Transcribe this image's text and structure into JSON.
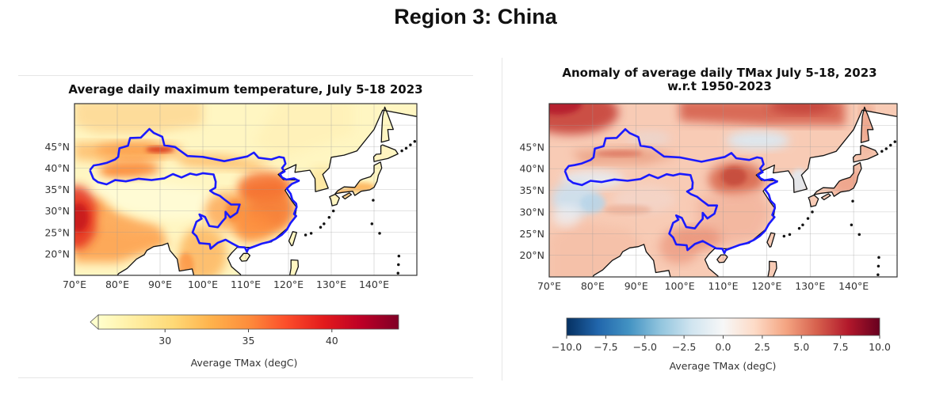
{
  "page": {
    "title": "Region 3: China"
  },
  "chart_data": [
    {
      "type": "heatmap",
      "title": "Average daily maximum temperature, July 5-18 2023",
      "xlabel": "",
      "ylabel": "",
      "x_ticks": [
        "70°E",
        "80°E",
        "90°E",
        "100°E",
        "110°E",
        "120°E",
        "130°E",
        "140°E"
      ],
      "x_tick_values": [
        70,
        80,
        90,
        100,
        110,
        120,
        130,
        140
      ],
      "y_ticks": [
        "45°N",
        "40°N",
        "35°N",
        "30°N",
        "25°N",
        "20°N"
      ],
      "y_tick_values": [
        45,
        40,
        35,
        30,
        25,
        20
      ],
      "xlim": [
        70,
        150
      ],
      "ylim": [
        15,
        55
      ],
      "grid": true,
      "region_outline": "China (blue)",
      "colormap": "YlOrRd",
      "colorbar": {
        "label": "Average TMax (degC)",
        "range": [
          26,
          44
        ],
        "ticks": [
          "30",
          "35",
          "40"
        ],
        "tick_values": [
          30,
          35,
          40
        ],
        "extend": "min",
        "orientation": "horizontal",
        "placement": "bottom"
      }
    },
    {
      "type": "heatmap",
      "title": "Anomaly of average daily TMax July 5-18, 2023",
      "subtitle": "w.r.t 1950-2023",
      "xlabel": "",
      "ylabel": "",
      "x_ticks": [
        "70°E",
        "80°E",
        "90°E",
        "100°E",
        "110°E",
        "120°E",
        "130°E",
        "140°E"
      ],
      "x_tick_values": [
        70,
        80,
        90,
        100,
        110,
        120,
        130,
        140
      ],
      "y_ticks": [
        "45°N",
        "40°N",
        "35°N",
        "30°N",
        "25°N",
        "20°N"
      ],
      "y_tick_values": [
        45,
        40,
        35,
        30,
        25,
        20
      ],
      "xlim": [
        70,
        150
      ],
      "ylim": [
        15,
        55
      ],
      "grid": true,
      "region_outline": "China (blue)",
      "colormap": "RdBu_r",
      "colorbar": {
        "label": "Average TMax (degC)",
        "range": [
          -10,
          10
        ],
        "ticks": [
          "−10.0",
          "−7.5",
          "−5.0",
          "−2.5",
          "0.0",
          "2.5",
          "5.0",
          "7.5",
          "10.0"
        ],
        "tick_values": [
          -10,
          -7.5,
          -5,
          -2.5,
          0,
          2.5,
          5,
          7.5,
          10
        ],
        "extend": "neither",
        "orientation": "horizontal",
        "placement": "bottom"
      }
    }
  ],
  "colors": {
    "region_outline": "#1a1aff",
    "coastline": "#111111",
    "ylorrd": [
      "#ffffcc",
      "#ffeda0",
      "#fed976",
      "#feb24c",
      "#fd8d3c",
      "#fc4e2a",
      "#e31a1c",
      "#bd0026",
      "#800026"
    ],
    "rdbu_r": [
      "#053061",
      "#2166ac",
      "#4393c3",
      "#92c5de",
      "#d1e5f0",
      "#f7f7f7",
      "#fddbc7",
      "#f4a582",
      "#d6604d",
      "#b2182b",
      "#67001f"
    ]
  }
}
